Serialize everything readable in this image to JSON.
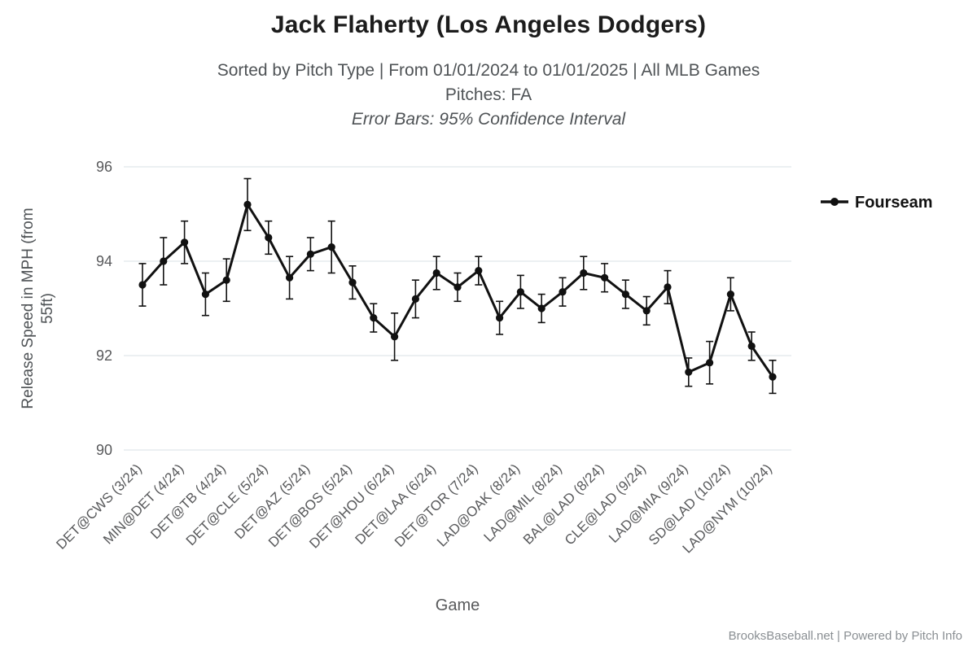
{
  "header": {
    "title": "Jack Flaherty (Los Angeles Dodgers)",
    "subtitle1": "Sorted by Pitch Type | From 01/01/2024 to 01/01/2025 | All MLB Games",
    "subtitle2": "Pitches: FA",
    "subtitle3": "Error Bars: 95% Confidence Interval"
  },
  "footer": {
    "credit": "BrooksBaseball.net | Powered by Pitch Info"
  },
  "colors": {
    "series": "#111111",
    "grid": "#d9e1e6",
    "muted_text": "#58595b"
  },
  "chart_data": {
    "type": "line",
    "title": "Jack Flaherty (Los Angeles Dodgers)",
    "xlabel": "Game",
    "ylabel": "Release Speed in MPH (from 55ft)",
    "ylim": [
      90,
      96
    ],
    "yticks": [
      90,
      92,
      94,
      96
    ],
    "grid": "horizontal",
    "error_bars": "95% Confidence Interval",
    "legend": {
      "label": "Fourseam",
      "color": "#111111",
      "position": "right"
    },
    "points": [
      {
        "label": "DET@CWS (3/24)",
        "value": 93.5,
        "err": 0.45
      },
      {
        "label": "",
        "value": 94.0,
        "err": 0.5
      },
      {
        "label": "MIN@DET (4/24)",
        "value": 94.4,
        "err": 0.45
      },
      {
        "label": "",
        "value": 93.3,
        "err": 0.45
      },
      {
        "label": "DET@TB (4/24)",
        "value": 93.6,
        "err": 0.45
      },
      {
        "label": "",
        "value": 95.2,
        "err": 0.55
      },
      {
        "label": "DET@CLE (5/24)",
        "value": 94.5,
        "err": 0.35
      },
      {
        "label": "",
        "value": 93.65,
        "err": 0.45
      },
      {
        "label": "DET@AZ (5/24)",
        "value": 94.15,
        "err": 0.35
      },
      {
        "label": "",
        "value": 94.3,
        "err": 0.55
      },
      {
        "label": "DET@BOS (5/24)",
        "value": 93.55,
        "err": 0.35
      },
      {
        "label": "",
        "value": 92.8,
        "err": 0.3
      },
      {
        "label": "DET@HOU (6/24)",
        "value": 92.4,
        "err": 0.5
      },
      {
        "label": "",
        "value": 93.2,
        "err": 0.4
      },
      {
        "label": "DET@LAA (6/24)",
        "value": 93.75,
        "err": 0.35
      },
      {
        "label": "",
        "value": 93.45,
        "err": 0.3
      },
      {
        "label": "DET@TOR (7/24)",
        "value": 93.8,
        "err": 0.3
      },
      {
        "label": "",
        "value": 92.8,
        "err": 0.35
      },
      {
        "label": "LAD@OAK (8/24)",
        "value": 93.35,
        "err": 0.35
      },
      {
        "label": "",
        "value": 93.0,
        "err": 0.3
      },
      {
        "label": "LAD@MIL (8/24)",
        "value": 93.35,
        "err": 0.3
      },
      {
        "label": "",
        "value": 93.75,
        "err": 0.35
      },
      {
        "label": "BAL@LAD (8/24)",
        "value": 93.65,
        "err": 0.3
      },
      {
        "label": "",
        "value": 93.3,
        "err": 0.3
      },
      {
        "label": "CLE@LAD (9/24)",
        "value": 92.95,
        "err": 0.3
      },
      {
        "label": "",
        "value": 93.45,
        "err": 0.35
      },
      {
        "label": "LAD@MIA (9/24)",
        "value": 91.65,
        "err": 0.3
      },
      {
        "label": "",
        "value": 91.85,
        "err": 0.45
      },
      {
        "label": "SD@LAD (10/24)",
        "value": 93.3,
        "err": 0.35
      },
      {
        "label": "",
        "value": 92.2,
        "err": 0.3
      },
      {
        "label": "LAD@NYM (10/24)",
        "value": 91.55,
        "err": 0.35
      }
    ]
  }
}
